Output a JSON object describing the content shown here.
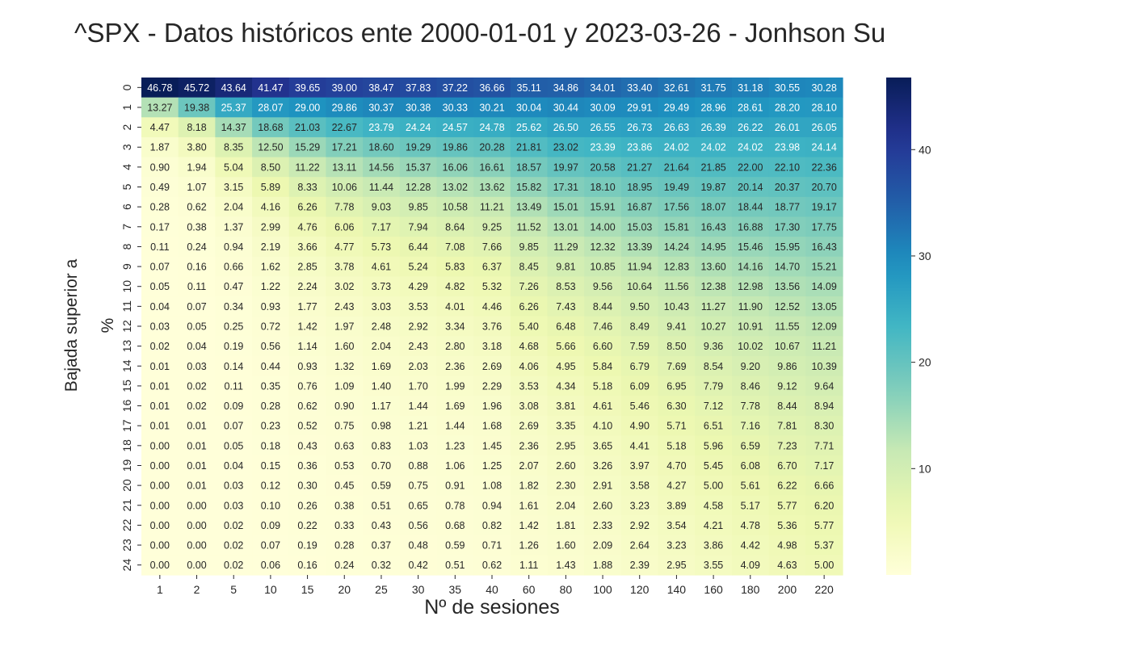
{
  "chart_data": {
    "type": "heatmap",
    "title": "^SPX -  Datos históricos ente 2000-01-01 y 2023-03-26 - Jonhson Su",
    "xlabel": "Nº de sesiones",
    "ylabel": "Bajada superior a %",
    "ylabel_lines": [
      "Bajada superior a",
      "%"
    ],
    "x_categories": [
      "1",
      "2",
      "5",
      "10",
      "15",
      "20",
      "25",
      "30",
      "35",
      "40",
      "60",
      "80",
      "100",
      "120",
      "140",
      "160",
      "180",
      "200",
      "220"
    ],
    "y_categories": [
      "0",
      "1",
      "2",
      "3",
      "4",
      "5",
      "6",
      "7",
      "8",
      "9",
      "10",
      "11",
      "12",
      "13",
      "14",
      "15",
      "16",
      "17",
      "18",
      "19",
      "20",
      "21",
      "22",
      "23",
      "24"
    ],
    "values": [
      [
        "46.78",
        "45.72",
        "43.64",
        "41.47",
        "39.65",
        "39.00",
        "38.47",
        "37.83",
        "37.22",
        "36.66",
        "35.11",
        "34.86",
        "34.01",
        "33.40",
        "32.61",
        "31.75",
        "31.18",
        "30.55",
        "30.28"
      ],
      [
        "13.27",
        "19.38",
        "25.37",
        "28.07",
        "29.00",
        "29.86",
        "30.37",
        "30.38",
        "30.33",
        "30.21",
        "30.04",
        "30.44",
        "30.09",
        "29.91",
        "29.49",
        "28.96",
        "28.61",
        "28.20",
        "28.10"
      ],
      [
        "4.47",
        "8.18",
        "14.37",
        "18.68",
        "21.03",
        "22.67",
        "23.79",
        "24.24",
        "24.57",
        "24.78",
        "25.62",
        "26.50",
        "26.55",
        "26.73",
        "26.63",
        "26.39",
        "26.22",
        "26.01",
        "26.05"
      ],
      [
        "1.87",
        "3.80",
        "8.35",
        "12.50",
        "15.29",
        "17.21",
        "18.60",
        "19.29",
        "19.86",
        "20.28",
        "21.81",
        "23.02",
        "23.39",
        "23.86",
        "24.02",
        "24.02",
        "24.02",
        "23.98",
        "24.14"
      ],
      [
        "0.90",
        "1.94",
        "5.04",
        "8.50",
        "11.22",
        "13.11",
        "14.56",
        "15.37",
        "16.06",
        "16.61",
        "18.57",
        "19.97",
        "20.58",
        "21.27",
        "21.64",
        "21.85",
        "22.00",
        "22.10",
        "22.36"
      ],
      [
        "0.49",
        "1.07",
        "3.15",
        "5.89",
        "8.33",
        "10.06",
        "11.44",
        "12.28",
        "13.02",
        "13.62",
        "15.82",
        "17.31",
        "18.10",
        "18.95",
        "19.49",
        "19.87",
        "20.14",
        "20.37",
        "20.70"
      ],
      [
        "0.28",
        "0.62",
        "2.04",
        "4.16",
        "6.26",
        "7.78",
        "9.03",
        "9.85",
        "10.58",
        "11.21",
        "13.49",
        "15.01",
        "15.91",
        "16.87",
        "17.56",
        "18.07",
        "18.44",
        "18.77",
        "19.17"
      ],
      [
        "0.17",
        "0.38",
        "1.37",
        "2.99",
        "4.76",
        "6.06",
        "7.17",
        "7.94",
        "8.64",
        "9.25",
        "11.52",
        "13.01",
        "14.00",
        "15.03",
        "15.81",
        "16.43",
        "16.88",
        "17.30",
        "17.75"
      ],
      [
        "0.11",
        "0.24",
        "0.94",
        "2.19",
        "3.66",
        "4.77",
        "5.73",
        "6.44",
        "7.08",
        "7.66",
        "9.85",
        "11.29",
        "12.32",
        "13.39",
        "14.24",
        "14.95",
        "15.46",
        "15.95",
        "16.43"
      ],
      [
        "0.07",
        "0.16",
        "0.66",
        "1.62",
        "2.85",
        "3.78",
        "4.61",
        "5.24",
        "5.83",
        "6.37",
        "8.45",
        "9.81",
        "10.85",
        "11.94",
        "12.83",
        "13.60",
        "14.16",
        "14.70",
        "15.21"
      ],
      [
        "0.05",
        "0.11",
        "0.47",
        "1.22",
        "2.24",
        "3.02",
        "3.73",
        "4.29",
        "4.82",
        "5.32",
        "7.26",
        "8.53",
        "9.56",
        "10.64",
        "11.56",
        "12.38",
        "12.98",
        "13.56",
        "14.09"
      ],
      [
        "0.04",
        "0.07",
        "0.34",
        "0.93",
        "1.77",
        "2.43",
        "3.03",
        "3.53",
        "4.01",
        "4.46",
        "6.26",
        "7.43",
        "8.44",
        "9.50",
        "10.43",
        "11.27",
        "11.90",
        "12.52",
        "13.05"
      ],
      [
        "0.03",
        "0.05",
        "0.25",
        "0.72",
        "1.42",
        "1.97",
        "2.48",
        "2.92",
        "3.34",
        "3.76",
        "5.40",
        "6.48",
        "7.46",
        "8.49",
        "9.41",
        "10.27",
        "10.91",
        "11.55",
        "12.09"
      ],
      [
        "0.02",
        "0.04",
        "0.19",
        "0.56",
        "1.14",
        "1.60",
        "2.04",
        "2.43",
        "2.80",
        "3.18",
        "4.68",
        "5.66",
        "6.60",
        "7.59",
        "8.50",
        "9.36",
        "10.02",
        "10.67",
        "11.21"
      ],
      [
        "0.01",
        "0.03",
        "0.14",
        "0.44",
        "0.93",
        "1.32",
        "1.69",
        "2.03",
        "2.36",
        "2.69",
        "4.06",
        "4.95",
        "5.84",
        "6.79",
        "7.69",
        "8.54",
        "9.20",
        "9.86",
        "10.39"
      ],
      [
        "0.01",
        "0.02",
        "0.11",
        "0.35",
        "0.76",
        "1.09",
        "1.40",
        "1.70",
        "1.99",
        "2.29",
        "3.53",
        "4.34",
        "5.18",
        "6.09",
        "6.95",
        "7.79",
        "8.46",
        "9.12",
        "9.64"
      ],
      [
        "0.01",
        "0.02",
        "0.09",
        "0.28",
        "0.62",
        "0.90",
        "1.17",
        "1.44",
        "1.69",
        "1.96",
        "3.08",
        "3.81",
        "4.61",
        "5.46",
        "6.30",
        "7.12",
        "7.78",
        "8.44",
        "8.94"
      ],
      [
        "0.01",
        "0.01",
        "0.07",
        "0.23",
        "0.52",
        "0.75",
        "0.98",
        "1.21",
        "1.44",
        "1.68",
        "2.69",
        "3.35",
        "4.10",
        "4.90",
        "5.71",
        "6.51",
        "7.16",
        "7.81",
        "8.30"
      ],
      [
        "0.00",
        "0.01",
        "0.05",
        "0.18",
        "0.43",
        "0.63",
        "0.83",
        "1.03",
        "1.23",
        "1.45",
        "2.36",
        "2.95",
        "3.65",
        "4.41",
        "5.18",
        "5.96",
        "6.59",
        "7.23",
        "7.71"
      ],
      [
        "0.00",
        "0.01",
        "0.04",
        "0.15",
        "0.36",
        "0.53",
        "0.70",
        "0.88",
        "1.06",
        "1.25",
        "2.07",
        "2.60",
        "3.26",
        "3.97",
        "4.70",
        "5.45",
        "6.08",
        "6.70",
        "7.17"
      ],
      [
        "0.00",
        "0.01",
        "0.03",
        "0.12",
        "0.30",
        "0.45",
        "0.59",
        "0.75",
        "0.91",
        "1.08",
        "1.82",
        "2.30",
        "2.91",
        "3.58",
        "4.27",
        "5.00",
        "5.61",
        "6.22",
        "6.66"
      ],
      [
        "0.00",
        "0.00",
        "0.03",
        "0.10",
        "0.26",
        "0.38",
        "0.51",
        "0.65",
        "0.78",
        "0.94",
        "1.61",
        "2.04",
        "2.60",
        "3.23",
        "3.89",
        "4.58",
        "5.17",
        "5.77",
        "6.20"
      ],
      [
        "0.00",
        "0.00",
        "0.02",
        "0.09",
        "0.22",
        "0.33",
        "0.43",
        "0.56",
        "0.68",
        "0.82",
        "1.42",
        "1.81",
        "2.33",
        "2.92",
        "3.54",
        "4.21",
        "4.78",
        "5.36",
        "5.77"
      ],
      [
        "0.00",
        "0.00",
        "0.02",
        "0.07",
        "0.19",
        "0.28",
        "0.37",
        "0.48",
        "0.59",
        "0.71",
        "1.26",
        "1.60",
        "2.09",
        "2.64",
        "3.23",
        "3.86",
        "4.42",
        "4.98",
        "5.37"
      ],
      [
        "0.00",
        "0.00",
        "0.02",
        "0.06",
        "0.16",
        "0.24",
        "0.32",
        "0.42",
        "0.51",
        "0.62",
        "1.11",
        "1.43",
        "1.88",
        "2.39",
        "2.95",
        "3.55",
        "4.09",
        "4.63",
        "5.00"
      ]
    ],
    "colorbar": {
      "colormap": "YlGnBu",
      "ticks": [
        "10",
        "20",
        "30",
        "40"
      ],
      "vmin": 0,
      "vmax": 46.78
    },
    "grid": false
  }
}
